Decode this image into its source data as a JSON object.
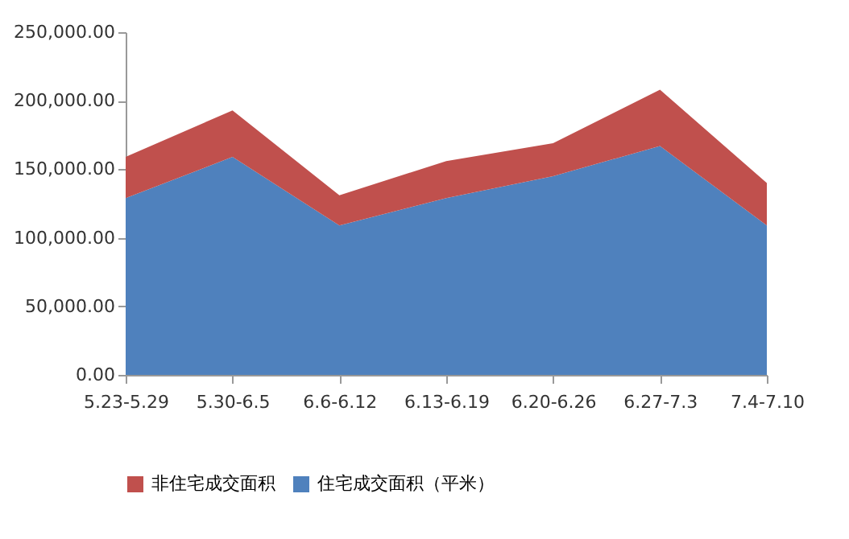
{
  "chart_data": {
    "type": "area",
    "stacked": true,
    "categories": [
      "5.23-5.29",
      "5.30-6.5",
      "6.6-6.12",
      "6.13-6.19",
      "6.20-6.26",
      "6.27-7.3",
      "7.4-7.10"
    ],
    "series": [
      {
        "name": "住宅成交面积（平米）",
        "color": "#4f81bd",
        "values": [
          129000,
          159000,
          109000,
          129000,
          145000,
          167000,
          109000
        ]
      },
      {
        "name": "非住宅成交面积",
        "color": "#c0504d",
        "values": [
          30000,
          34000,
          22000,
          27000,
          24000,
          41000,
          31000
        ]
      }
    ],
    "ylim": [
      0,
      250000
    ],
    "yticks": [
      {
        "value": 0,
        "label": "0.00"
      },
      {
        "value": 50000,
        "label": "50,000.00"
      },
      {
        "value": 100000,
        "label": "100,000.00"
      },
      {
        "value": 150000,
        "label": "150,000.00"
      },
      {
        "value": 200000,
        "label": "200,000.00"
      },
      {
        "value": 250000,
        "label": "250,000.00"
      }
    ],
    "grid": false,
    "legend": "bottom"
  }
}
